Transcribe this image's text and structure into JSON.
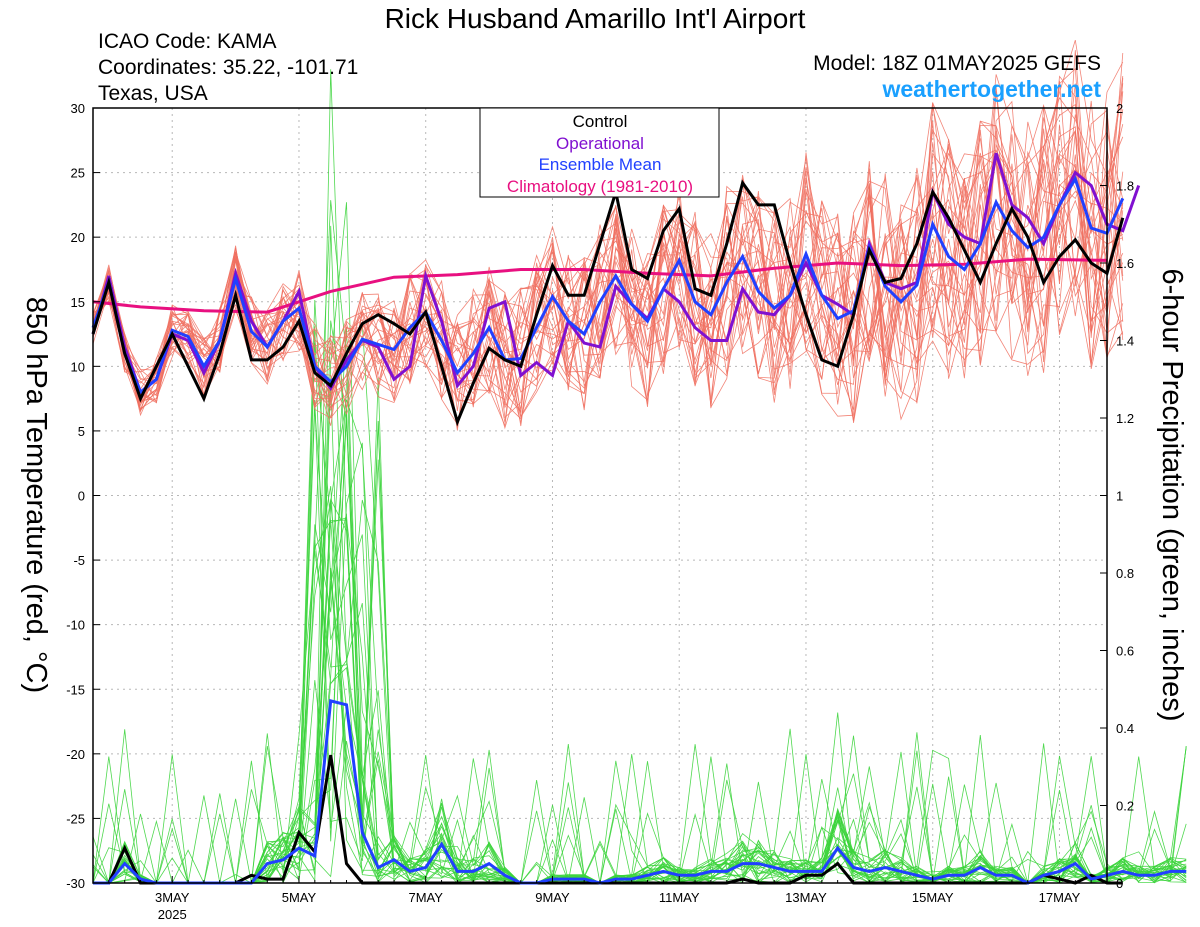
{
  "header": {
    "title": "Rick Husband Amarillo Int'l Airport",
    "icao": "ICAO Code: KAMA",
    "coords": "Coordinates: 35.22, -101.71",
    "location": "Texas, USA",
    "model": "Model: 18Z 01MAY2025 GEFS",
    "site": "weathertogether.net"
  },
  "colors": {
    "members_temp": "#f07060",
    "members_precip": "#3cd43c",
    "control": "#000000",
    "operational": "#8010d0",
    "mean": "#2040ff",
    "climatology": "#e81080",
    "site": "#1aa0ff"
  },
  "chart_data": {
    "type": "line",
    "title": "Rick Husband Amarillo Int'l Airport",
    "ylabel": "850 hPa Temperature (red, °C)",
    "y2label": "6-hour Precipitation (green, inches)",
    "xlabel": "",
    "x_ticks": [
      "3MAY",
      "5MAY",
      "7MAY",
      "9MAY",
      "11MAY",
      "13MAY",
      "15MAY",
      "17MAY"
    ],
    "x_tick_days": [
      3,
      5,
      7,
      9,
      11,
      13,
      15,
      17
    ],
    "x_year_label": "2025",
    "xlim_days": [
      1.75,
      17.75
    ],
    "ylim": [
      -30,
      30
    ],
    "y_ticks": [
      30,
      25,
      20,
      15,
      10,
      5,
      0,
      -5,
      -10,
      -15,
      -20,
      -25,
      -30
    ],
    "y2lim": [
      0,
      2
    ],
    "y2_ticks": [
      "2",
      "1.8",
      "1.6",
      "1.4",
      "1.2",
      "1",
      "0.8",
      "0.6",
      "0.4",
      "0.2",
      "0"
    ],
    "grid": true,
    "legend_position": "top-center",
    "legend": [
      "Control",
      "Operational",
      "Ensemble Mean",
      "Climatology (1981-2010)"
    ],
    "step_days": 0.25,
    "start_day": 1.75,
    "series": [
      {
        "name": "Control",
        "axis": "temp",
        "values": [
          12.5,
          16.5,
          11,
          7.5,
          10,
          12.5,
          10,
          7.5,
          11,
          15.5,
          10.5,
          10.5,
          11.5,
          13.5,
          9.5,
          8.5,
          11,
          13.3,
          14,
          13.3,
          12.5,
          14.2,
          10,
          5.7,
          8.7,
          11.4,
          10.5,
          10,
          14,
          17.8,
          15.5,
          15.5,
          19.5,
          23.5,
          17.5,
          16.8,
          20.5,
          22.2,
          16,
          15.5,
          19.5,
          24.2,
          22.5,
          22.5,
          18,
          14,
          10.5,
          10,
          14,
          19,
          16.5,
          16.8,
          19.5,
          23.5,
          21.5,
          19,
          16.5,
          19.5,
          22.2,
          20,
          16.5,
          18.5,
          19.8,
          18,
          17.2,
          21.5
        ]
      },
      {
        "name": "Operational",
        "axis": "temp",
        "values": [
          12.5,
          17,
          11.5,
          8,
          9,
          12.5,
          12,
          9.5,
          12,
          17.2,
          13.5,
          11.5,
          13.5,
          15.8,
          10,
          8.3,
          10.5,
          12,
          11.5,
          9,
          10,
          17,
          13.5,
          8.5,
          10,
          14.5,
          15,
          9.3,
          10.3,
          9.3,
          13.5,
          11.8,
          11.5,
          16.2,
          14.8,
          13.7,
          16,
          15,
          13,
          12,
          12,
          16,
          14.2,
          14,
          15.5,
          18,
          15.5,
          14.8,
          14,
          19.5,
          16.5,
          16,
          16.5,
          23.5,
          21,
          20,
          19.5,
          26.5,
          22.5,
          21.5,
          19.5,
          22.5,
          25,
          24,
          21,
          20.5,
          24
        ]
      },
      {
        "name": "Ensemble Mean",
        "axis": "temp",
        "values": [
          13,
          16.5,
          11,
          8,
          9,
          12.8,
          12.3,
          10,
          12,
          16.8,
          12.7,
          11.5,
          13.5,
          14.5,
          10,
          8.8,
          10,
          12.1,
          11.7,
          11.3,
          13,
          14.2,
          12,
          9.5,
          11,
          13,
          10.5,
          10.6,
          13,
          15.4,
          13.5,
          12.5,
          15,
          17,
          14.8,
          13.5,
          16,
          18.2,
          15,
          14,
          16.5,
          18.5,
          15.8,
          14.5,
          15.5,
          18.7,
          15.5,
          13.7,
          14.3,
          19.2,
          16.2,
          15,
          16.3,
          21,
          18.5,
          17.5,
          19.5,
          22.7,
          20.5,
          19.2,
          20,
          22.5,
          24.5,
          20.7,
          20.3,
          23
        ]
      },
      {
        "name": "Climatology (1981-2010)",
        "axis": "temp",
        "days": [
          1.75,
          2.5,
          3.5,
          4.5,
          5.5,
          6.5,
          7.5,
          8.5,
          9.5,
          10.5,
          11.5,
          12.5,
          13.5,
          14.5,
          15.5,
          16.5,
          17.75
        ],
        "values": [
          15,
          14.6,
          14.3,
          14.2,
          15.8,
          16.9,
          17.1,
          17.5,
          17.5,
          17.2,
          17,
          17.6,
          18,
          17.8,
          17.9,
          18.3,
          18.2
        ]
      }
    ],
    "precip_series": [
      {
        "name": "Ensemble Mean",
        "values": [
          0,
          0,
          0.05,
          0.01,
          0,
          0,
          0,
          0,
          0,
          0,
          0,
          0.05,
          0.06,
          0.09,
          0.07,
          0.47,
          0.46,
          0.13,
          0.04,
          0.06,
          0.03,
          0.04,
          0.1,
          0.03,
          0.03,
          0.05,
          0.02,
          0,
          0,
          0.01,
          0.01,
          0.01,
          0,
          0.01,
          0.01,
          0.02,
          0.03,
          0.02,
          0.02,
          0.03,
          0.03,
          0.05,
          0.05,
          0.04,
          0.03,
          0.03,
          0.03,
          0.09,
          0.04,
          0.03,
          0.04,
          0.03,
          0.02,
          0.01,
          0.02,
          0.02,
          0.04,
          0.02,
          0.02,
          0,
          0.02,
          0.03,
          0.05,
          0.01,
          0.02,
          0.03,
          0.02,
          0.02,
          0.03,
          0.03
        ]
      },
      {
        "name": "Control",
        "values": [
          0,
          0,
          0.09,
          0,
          0,
          0,
          0,
          0,
          0,
          0,
          0.02,
          0.01,
          0.01,
          0.13,
          0.08,
          0.33,
          0.05,
          0,
          0,
          0,
          0,
          0,
          0,
          0,
          0,
          0,
          0,
          0,
          0,
          0,
          0,
          0,
          0,
          0,
          0,
          0,
          0,
          0,
          0,
          0,
          0,
          0.01,
          0,
          0,
          0,
          0.02,
          0.02,
          0.05,
          0,
          0,
          0,
          0,
          0,
          0,
          0,
          0,
          0,
          0,
          0,
          0,
          0.02,
          0.01,
          0,
          0.02,
          0,
          0
        ]
      }
    ]
  }
}
